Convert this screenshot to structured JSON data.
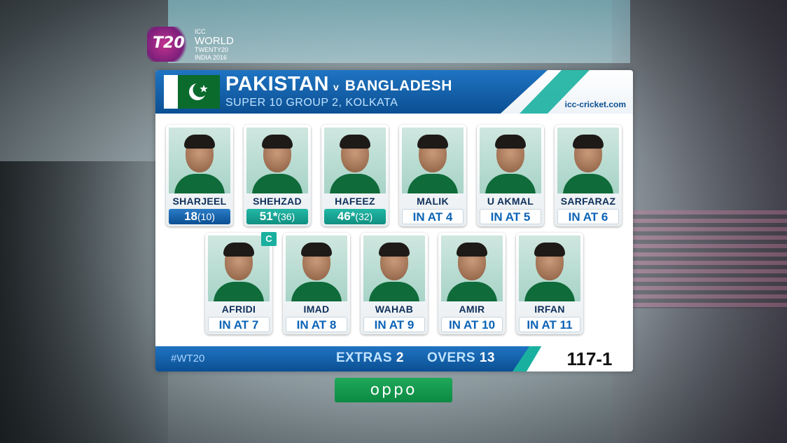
{
  "logo": {
    "t20": "T20",
    "line1": "ICC",
    "line2": "WORLD",
    "line3": "TWENTY20",
    "line4": "INDIA 2016"
  },
  "header": {
    "team": "PAKISTAN",
    "vs": "v",
    "opponent": "BANGLADESH",
    "subtitle": "SUPER 10 GROUP 2, KOLKATA",
    "website": "icc-cricket.com"
  },
  "players_row1": [
    {
      "name": "SHARJEEL",
      "stat": "18",
      "balls": "(10)",
      "style": "batting"
    },
    {
      "name": "SHEHZAD",
      "stat": "51*",
      "balls": "(36)",
      "style": "notout"
    },
    {
      "name": "HAFEEZ",
      "stat": "46*",
      "balls": "(32)",
      "style": "notout"
    },
    {
      "name": "MALIK",
      "stat": "IN AT 4",
      "balls": "",
      "style": "yet"
    },
    {
      "name": "U AKMAL",
      "stat": "IN AT 5",
      "balls": "",
      "style": "yet"
    },
    {
      "name": "SARFARAZ",
      "stat": "IN AT 6",
      "balls": "",
      "style": "yet"
    }
  ],
  "players_row2": [
    {
      "name": "AFRIDI",
      "stat": "IN AT 7",
      "balls": "",
      "style": "yet"
    },
    {
      "name": "IMAD",
      "stat": "IN AT 8",
      "balls": "",
      "style": "yet"
    },
    {
      "name": "WAHAB",
      "stat": "IN AT 9",
      "balls": "",
      "style": "yet"
    },
    {
      "name": "AMIR",
      "stat": "IN AT 10",
      "balls": "",
      "style": "yet"
    },
    {
      "name": "IRFAN",
      "stat": "IN AT 11",
      "balls": "",
      "style": "yet"
    }
  ],
  "captain_badge": "C",
  "footer": {
    "hashtag": "#WT20",
    "extras_label": "EXTRAS",
    "extras_value": "2",
    "overs_label": "OVERS",
    "overs_value": "13",
    "score": "117-1"
  },
  "sponsor": "oppo",
  "colors": {
    "primary_blue": "#0b4f93",
    "teal": "#1ab0a0",
    "flag_green": "#0a6b2d",
    "sponsor_green": "#0c8a43"
  }
}
